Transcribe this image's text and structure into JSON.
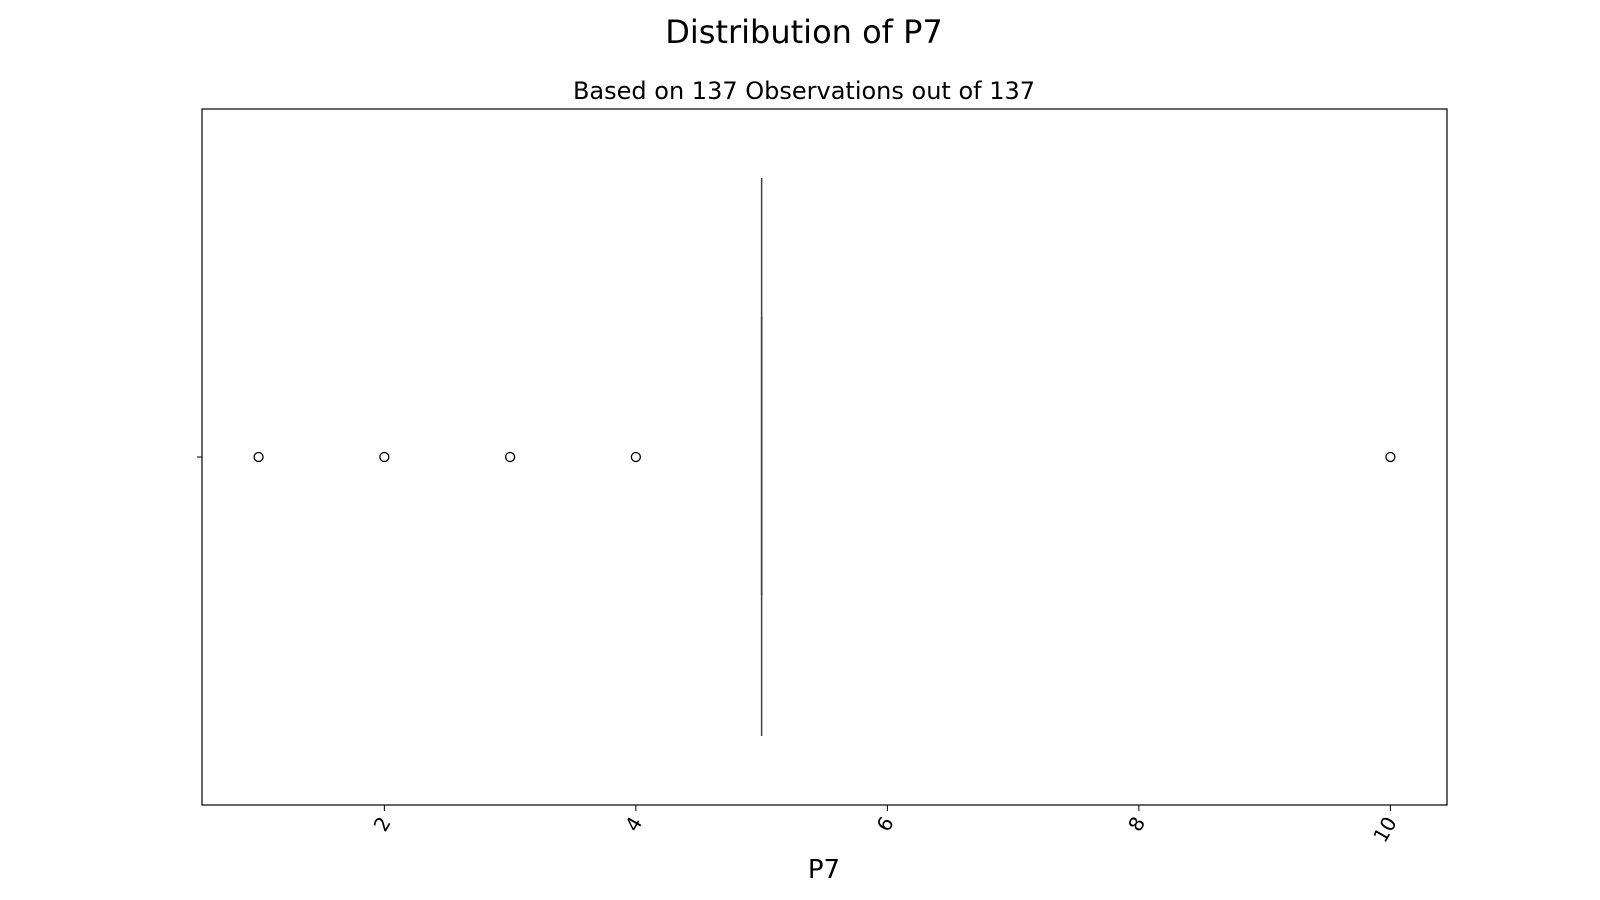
{
  "chart_data": {
    "type": "box",
    "orientation": "horizontal",
    "title": "Distribution of P7",
    "subtitle": "Based on 137 Observations out of 137",
    "xlabel": "P7",
    "ylabel": "",
    "xlim": [
      0.55,
      10.45
    ],
    "xticks": [
      2,
      4,
      6,
      8,
      10
    ],
    "tick_rotation_deg": 60,
    "grid": false,
    "box": {
      "q1": 5,
      "median": 5,
      "q3": 5,
      "whisker_low": 5,
      "whisker_high": 5
    },
    "outliers": [
      1,
      2,
      3,
      4,
      10
    ],
    "colors": {
      "line": "#3f3f3f",
      "frame": "#000000",
      "outlier_edge": "#000000"
    }
  }
}
